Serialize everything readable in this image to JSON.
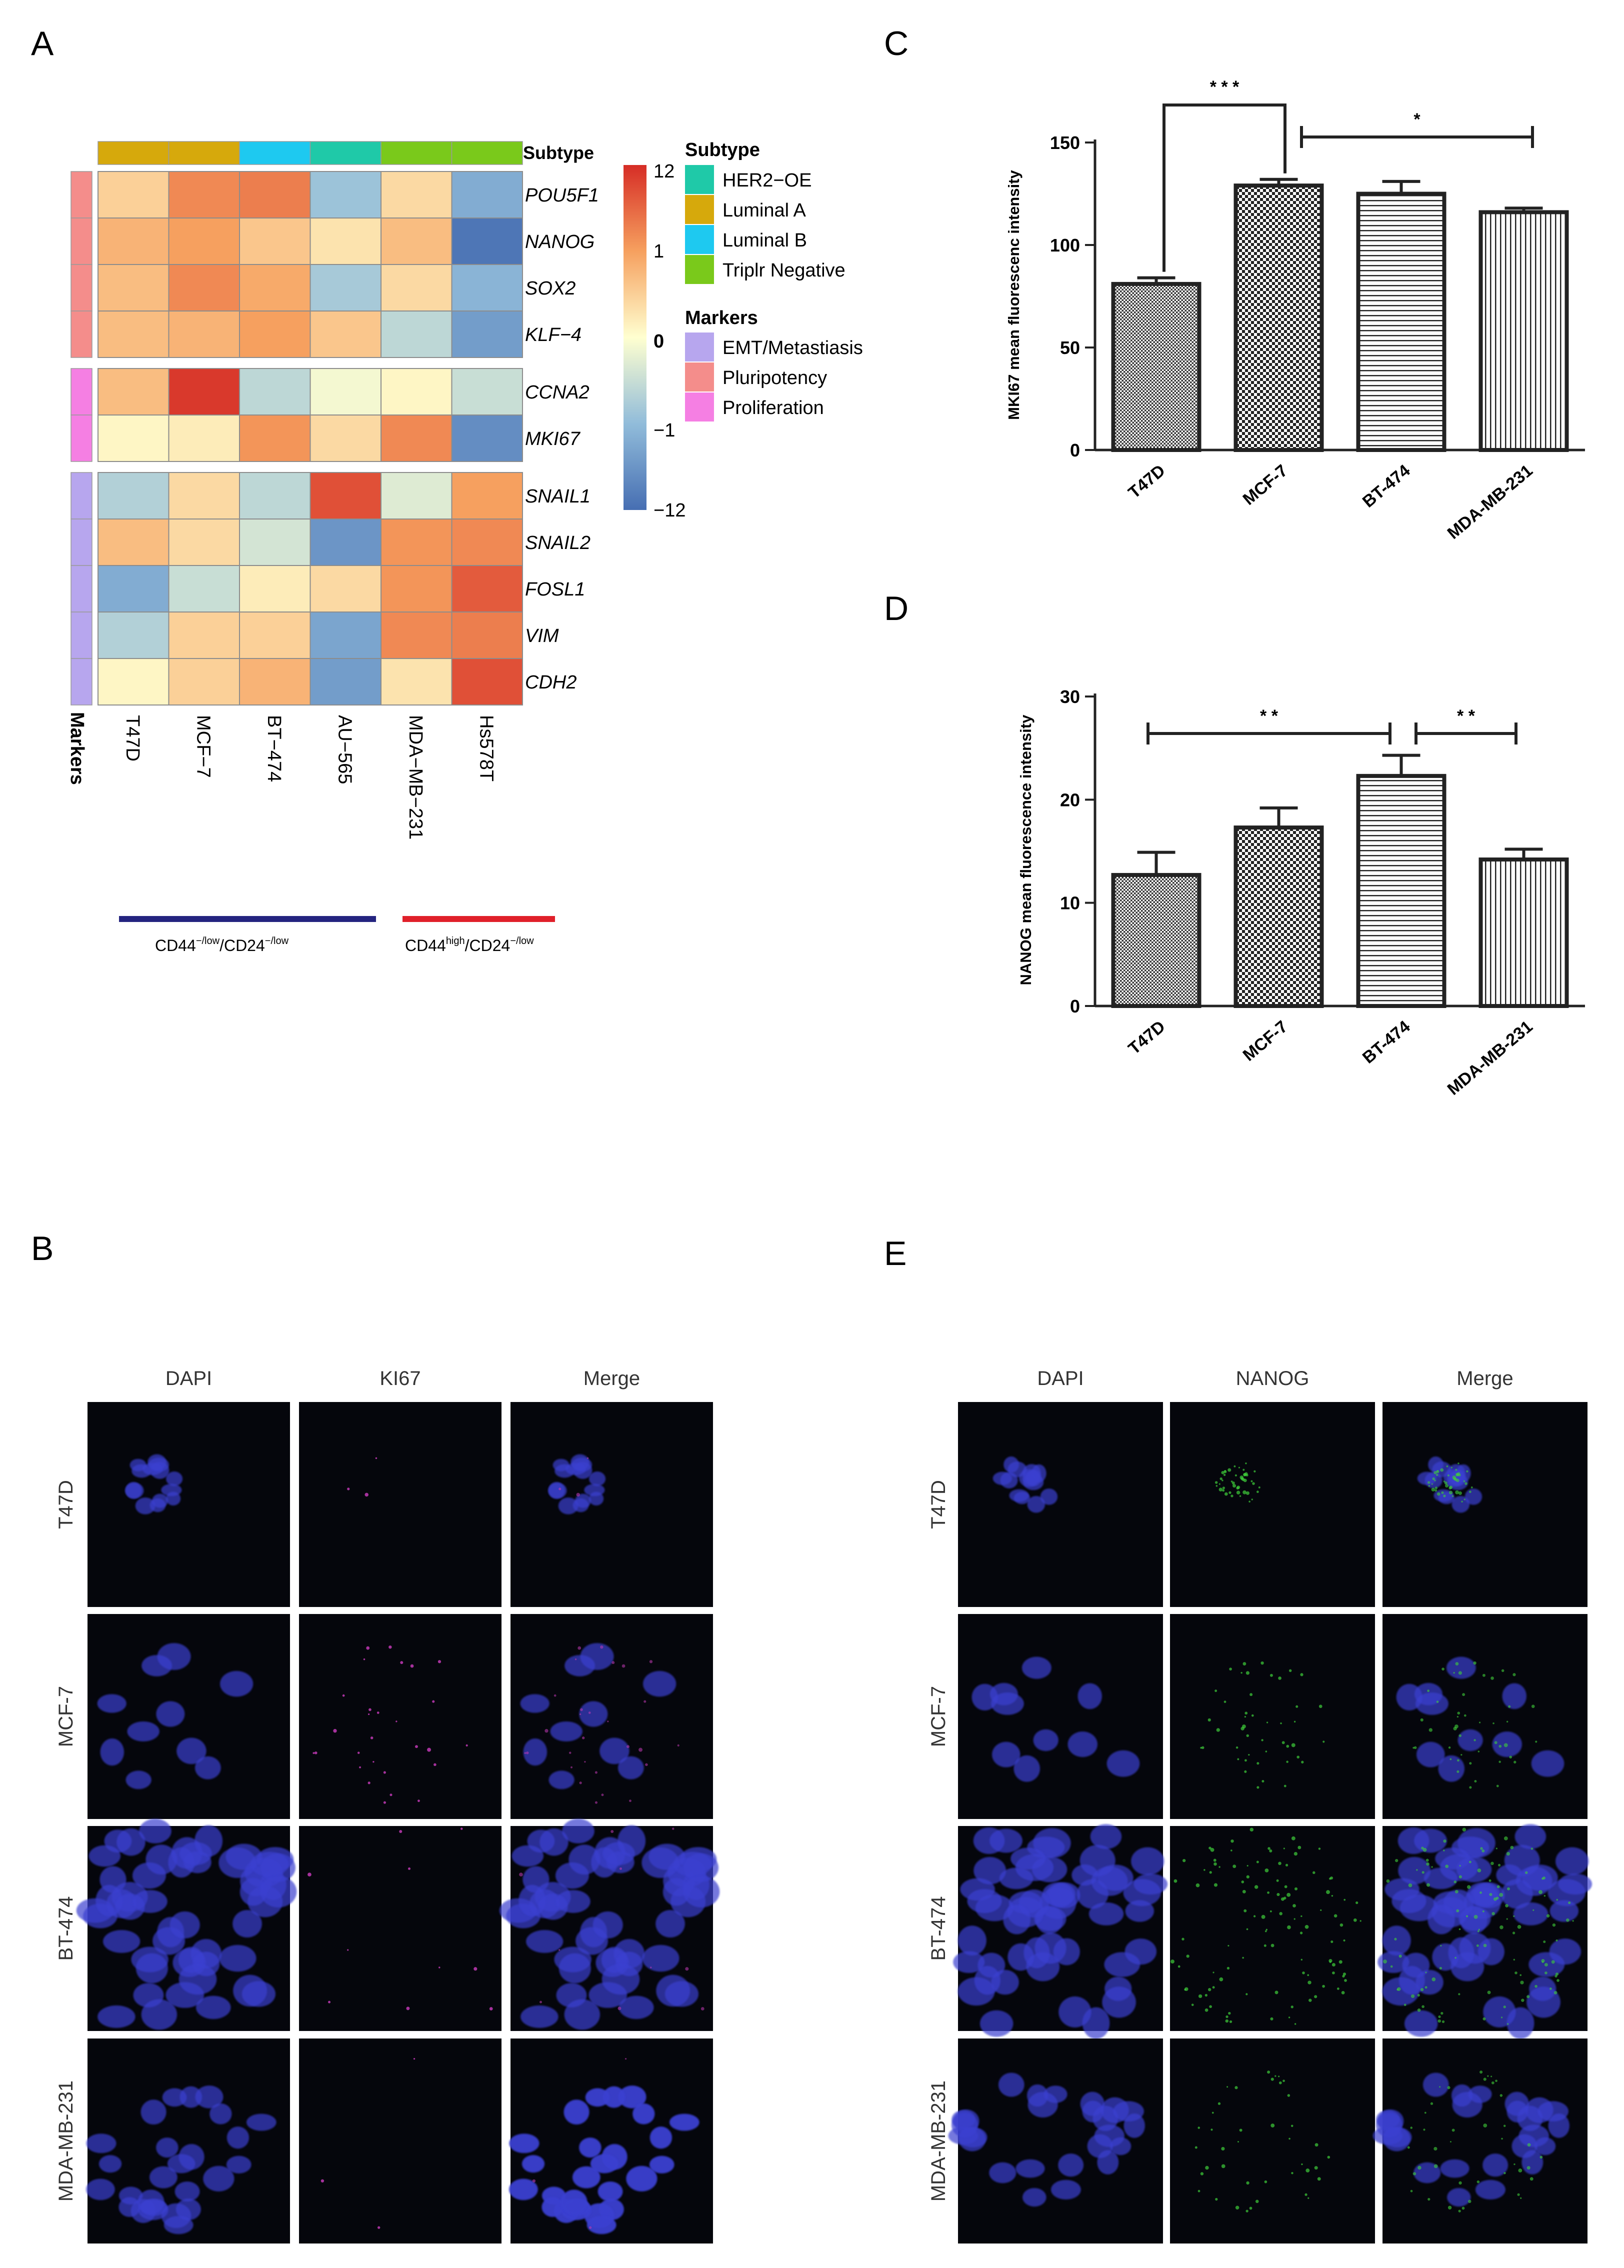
{
  "panels": {
    "A": "A",
    "B": "B",
    "C": "C",
    "D": "D",
    "E": "E"
  },
  "heatmap": {
    "columns": [
      "T47D",
      "MCF−7",
      "BT−474",
      "AU−565",
      "MDA−MB−231",
      "Hs578T"
    ],
    "subtype_row_label": "Subtype",
    "markers_col_label": "Markers",
    "column_subtypes": [
      "Luminal A",
      "Luminal A",
      "Luminal B",
      "HER2−OE",
      "Triplr Negative",
      "Triplr Negative"
    ],
    "genes": [
      "POU5F1",
      "NANOG",
      "SOX2",
      "KLF−4",
      "CCNA2",
      "MKI67",
      "SNAIL1",
      "SNAIL2",
      "FOSL1",
      "VIM",
      "CDH2"
    ],
    "gene_markers": [
      "Pluripotency",
      "Pluripotency",
      "Pluripotency",
      "Pluripotency",
      "Proliferation",
      "Proliferation",
      "EMT/Metastiasis",
      "EMT/Metastiasis",
      "EMT/Metastiasis",
      "EMT/Metastiasis",
      "EMT/Metastiasis"
    ],
    "values": [
      [
        0.25,
        0.6,
        0.65,
        -0.45,
        0.2,
        -0.6
      ],
      [
        0.4,
        0.5,
        0.3,
        0.15,
        0.35,
        -0.95
      ],
      [
        0.35,
        0.6,
        0.45,
        -0.4,
        0.2,
        -0.55
      ],
      [
        0.35,
        0.4,
        0.5,
        0.3,
        -0.3,
        -0.7
      ],
      [
        0.35,
        0.95,
        -0.3,
        -0.05,
        0.05,
        -0.25
      ],
      [
        0.05,
        0.1,
        0.55,
        0.2,
        0.6,
        -0.8
      ],
      [
        -0.35,
        0.2,
        -0.3,
        0.85,
        -0.15,
        0.5
      ],
      [
        0.35,
        0.2,
        -0.2,
        -0.75,
        0.55,
        0.6
      ],
      [
        -0.6,
        -0.25,
        0.1,
        0.2,
        0.55,
        0.8
      ],
      [
        -0.35,
        0.25,
        0.25,
        -0.65,
        0.6,
        0.65
      ],
      [
        0.05,
        0.25,
        0.4,
        -0.7,
        0.15,
        0.85
      ]
    ],
    "colorbar_ticks": [
      "12",
      "1",
      "0",
      "−1",
      "−12"
    ],
    "legend_subtype_title": "Subtype",
    "legend_subtypes": [
      {
        "label": "HER2−OE",
        "color": "#1fc9a8"
      },
      {
        "label": "Luminal A",
        "color": "#d6a90c"
      },
      {
        "label": "Luminal B",
        "color": "#1ec9f0"
      },
      {
        "label": "Triplr Negative",
        "color": "#7ac91b"
      }
    ],
    "legend_markers_title": "Markers",
    "legend_markers": [
      {
        "label": "EMT/Metastiasis",
        "color": "#b7a6ee"
      },
      {
        "label": "Pluripotency",
        "color": "#f48d8b"
      },
      {
        "label": "Proliferation",
        "color": "#f57fe3"
      }
    ],
    "group_lines": [
      {
        "label": "CD44",
        "sup1": "−/low",
        "mid": "/CD24",
        "sup2": "−/low",
        "color": "#24247f"
      },
      {
        "label": "CD44",
        "sup1": "high",
        "mid": "/CD24",
        "sup2": "−/low",
        "color": "#e0202a"
      }
    ]
  },
  "chart_data": [
    {
      "type": "bar",
      "panel": "C",
      "categories": [
        "T47D",
        "MCF-7",
        "BT-474",
        "MDA-MB-231"
      ],
      "values": [
        81,
        129,
        125,
        116
      ],
      "errors": [
        3,
        3,
        6,
        2
      ],
      "ylabel": "MKI67 mean fluorescenc intensity",
      "ylim": [
        0,
        150
      ],
      "yticks": [
        "0",
        "50",
        "100",
        "150"
      ],
      "significance": [
        {
          "between": [
            "T47D",
            "MCF-7"
          ],
          "label": "* * *"
        },
        {
          "between": [
            "MCF-7",
            "MDA-MB-231"
          ],
          "label": "*"
        }
      ]
    },
    {
      "type": "bar",
      "panel": "D",
      "categories": [
        "T47D",
        "MCF-7",
        "BT-474",
        "MDA-MB-231"
      ],
      "values": [
        12.7,
        17.3,
        22.3,
        14.2
      ],
      "errors": [
        2.2,
        1.9,
        2.0,
        1.0
      ],
      "ylabel": "NANOG mean fluorescence intensity",
      "ylim": [
        0,
        30
      ],
      "yticks": [
        "0",
        "10",
        "20",
        "30"
      ],
      "significance": [
        {
          "between": [
            "T47D",
            "BT-474"
          ],
          "label": "* *"
        },
        {
          "between": [
            "BT-474",
            "MDA-MB-231"
          ],
          "label": "* *"
        }
      ]
    }
  ],
  "micrographs": {
    "B": {
      "columns": [
        "DAPI",
        "KI67",
        "Merge"
      ],
      "rows": [
        "T47D",
        "MCF-7",
        "BT-474",
        "MDA-MB-231"
      ]
    },
    "E": {
      "columns": [
        "DAPI",
        "NANOG",
        "Merge"
      ],
      "rows": [
        "T47D",
        "MCF-7",
        "BT-474",
        "MDA-MB-231"
      ]
    }
  },
  "colors": {
    "nucleus": "#3a3fd0",
    "ki67": "#c23ab6",
    "nanog": "#3fcf3a",
    "panel_bg": "#05060c"
  }
}
